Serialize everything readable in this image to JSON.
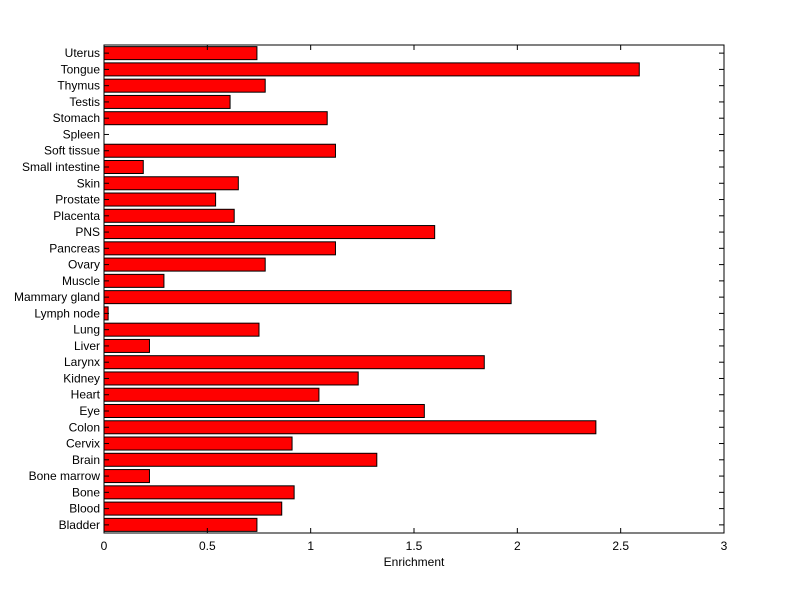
{
  "chart_data": {
    "type": "bar",
    "orientation": "horizontal",
    "categories": [
      "Bladder",
      "Blood",
      "Bone",
      "Bone marrow",
      "Brain",
      "Cervix",
      "Colon",
      "Eye",
      "Heart",
      "Kidney",
      "Larynx",
      "Liver",
      "Lung",
      "Lymph node",
      "Mammary gland",
      "Muscle",
      "Ovary",
      "Pancreas",
      "PNS",
      "Placenta",
      "Prostate",
      "Skin",
      "Small intestine",
      "Soft tissue",
      "Spleen",
      "Stomach",
      "Testis",
      "Thymus",
      "Tongue",
      "Uterus"
    ],
    "values": [
      0.74,
      0.86,
      0.92,
      0.22,
      1.32,
      0.91,
      2.38,
      1.55,
      1.04,
      1.23,
      1.84,
      0.22,
      0.75,
      0.02,
      1.97,
      0.29,
      0.78,
      1.12,
      1.6,
      0.63,
      0.54,
      0.65,
      0.19,
      1.12,
      0.0,
      1.08,
      0.61,
      0.78,
      2.59,
      0.74
    ],
    "title": "",
    "xlabel": "Enrichment",
    "ylabel": "",
    "xlim": [
      0,
      3
    ],
    "xticks": [
      0,
      0.5,
      1,
      1.5,
      2,
      2.5,
      3
    ],
    "xtick_labels": [
      "0",
      "0.5",
      "1",
      "1.5",
      "2",
      "2.5",
      "3"
    ],
    "grid": false,
    "bar_color": "#ff0000",
    "bar_edge_color": "#000000"
  }
}
